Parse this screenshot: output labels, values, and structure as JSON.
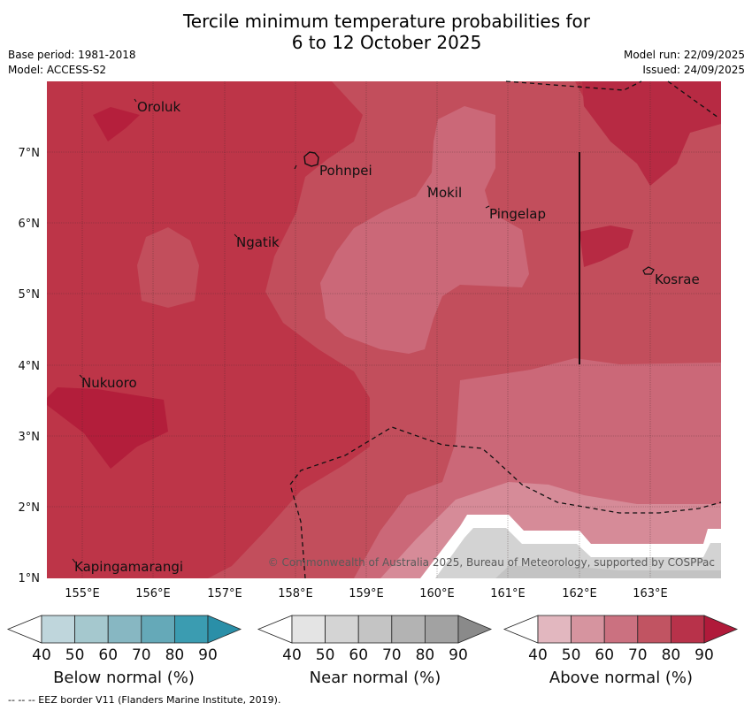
{
  "title": {
    "line1": "Tercile minimum temperature probabilities for",
    "line2": "6 to 12 October 2025"
  },
  "meta": {
    "base_period": "Base period: 1981-2018",
    "model": "Model: ACCESS-S2",
    "model_run": "Model run: 22/09/2025",
    "issued": "Issued: 24/09/2025"
  },
  "map": {
    "lon_labels": [
      "155°E",
      "156°E",
      "157°E",
      "158°E",
      "159°E",
      "160°E",
      "161°E",
      "162°E",
      "163°E"
    ],
    "lat_labels": [
      "7°N",
      "6°N",
      "5°N",
      "4°N",
      "3°N",
      "2°N",
      "1°N"
    ],
    "places": [
      "Oroluk",
      "Pohnpei",
      "Mokil",
      "Pingelap",
      "Ngatik",
      "Kosrae",
      "Nukuoro",
      "Kapingamarangi"
    ],
    "copyright": "© Commonwealth of Australia 2025, Bureau of Meteorology, supported by COSPPac"
  },
  "legend": {
    "below": {
      "title": "Below normal (%)",
      "ticks": [
        "40",
        "50",
        "60",
        "70",
        "80",
        "90"
      ],
      "colors": [
        "#ffffff",
        "#bfd6dc",
        "#a5c8ce",
        "#87b7c2",
        "#65a9b8",
        "#3b9cb1",
        "#2a8fa8"
      ]
    },
    "near": {
      "title": "Near normal (%)",
      "ticks": [
        "40",
        "50",
        "60",
        "70",
        "80",
        "90"
      ],
      "colors": [
        "#ffffff",
        "#e4e4e4",
        "#d4d4d4",
        "#c4c4c4",
        "#b3b3b3",
        "#a2a2a2",
        "#8a8a8a"
      ]
    },
    "above": {
      "title": "Above normal (%)",
      "ticks": [
        "40",
        "50",
        "60",
        "70",
        "80",
        "90"
      ],
      "colors": [
        "#ffffff",
        "#e2b7bf",
        "#d6949f",
        "#cb7180",
        "#c15462",
        "#b8324a",
        "#b01a3a"
      ]
    }
  },
  "footer": "--  --  -- EEZ border V11 (Flanders Marine Institute, 2019)."
}
